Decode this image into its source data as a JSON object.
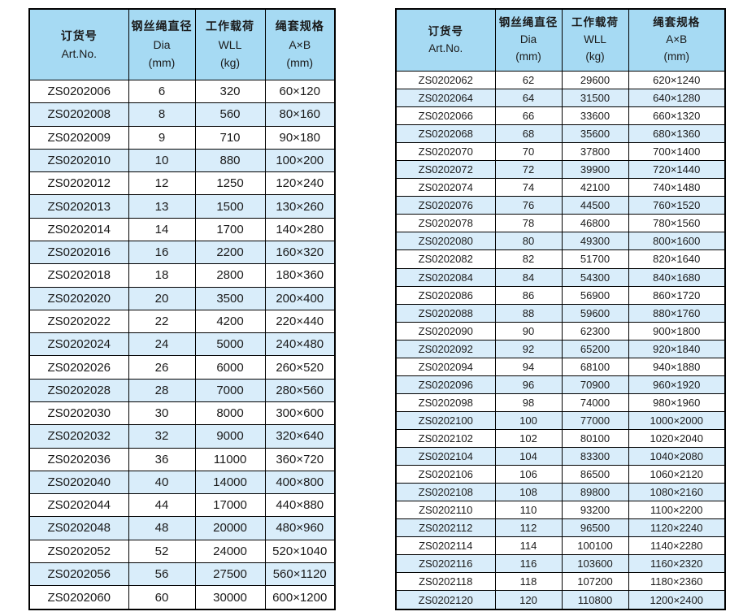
{
  "colors": {
    "header_bg": "#a6daf3",
    "row_alt_bg": "#d9edfa",
    "border": "#000000",
    "text": "#1a1a1a"
  },
  "header": {
    "art_no": {
      "zh": "订货号",
      "en": "Art.No."
    },
    "dia": {
      "zh": "钢丝绳直径",
      "en": "Dia",
      "unit": "(mm)"
    },
    "wll": {
      "zh": "工作载荷",
      "en": "WLL",
      "unit": "(kg)"
    },
    "spec": {
      "zh": "绳套规格",
      "en": "A×B",
      "unit": "(mm)"
    }
  },
  "tables": [
    {
      "name": "left-spec-table",
      "rows": [
        [
          "ZS0202006",
          "6",
          "320",
          "60×120"
        ],
        [
          "ZS0202008",
          "8",
          "560",
          "80×160"
        ],
        [
          "ZS0202009",
          "9",
          "710",
          "90×180"
        ],
        [
          "ZS0202010",
          "10",
          "880",
          "100×200"
        ],
        [
          "ZS0202012",
          "12",
          "1250",
          "120×240"
        ],
        [
          "ZS0202013",
          "13",
          "1500",
          "130×260"
        ],
        [
          "ZS0202014",
          "14",
          "1700",
          "140×280"
        ],
        [
          "ZS0202016",
          "16",
          "2200",
          "160×320"
        ],
        [
          "ZS0202018",
          "18",
          "2800",
          "180×360"
        ],
        [
          "ZS0202020",
          "20",
          "3500",
          "200×400"
        ],
        [
          "ZS0202022",
          "22",
          "4200",
          "220×440"
        ],
        [
          "ZS0202024",
          "24",
          "5000",
          "240×480"
        ],
        [
          "ZS0202026",
          "26",
          "6000",
          "260×520"
        ],
        [
          "ZS0202028",
          "28",
          "7000",
          "280×560"
        ],
        [
          "ZS0202030",
          "30",
          "8000",
          "300×600"
        ],
        [
          "ZS0202032",
          "32",
          "9000",
          "320×640"
        ],
        [
          "ZS0202036",
          "36",
          "11000",
          "360×720"
        ],
        [
          "ZS0202040",
          "40",
          "14000",
          "400×800"
        ],
        [
          "ZS0202044",
          "44",
          "17000",
          "440×880"
        ],
        [
          "ZS0202048",
          "48",
          "20000",
          "480×960"
        ],
        [
          "ZS0202052",
          "52",
          "24000",
          "520×1040"
        ],
        [
          "ZS0202056",
          "56",
          "27500",
          "560×1120"
        ],
        [
          "ZS0202060",
          "60",
          "30000",
          "600×1200"
        ]
      ]
    },
    {
      "name": "right-spec-table",
      "rows": [
        [
          "ZS0202062",
          "62",
          "29600",
          "620×1240"
        ],
        [
          "ZS0202064",
          "64",
          "31500",
          "640×1280"
        ],
        [
          "ZS0202066",
          "66",
          "33600",
          "660×1320"
        ],
        [
          "ZS0202068",
          "68",
          "35600",
          "680×1360"
        ],
        [
          "ZS0202070",
          "70",
          "37800",
          "700×1400"
        ],
        [
          "ZS0202072",
          "72",
          "39900",
          "720×1440"
        ],
        [
          "ZS0202074",
          "74",
          "42100",
          "740×1480"
        ],
        [
          "ZS0202076",
          "76",
          "44500",
          "760×1520"
        ],
        [
          "ZS0202078",
          "78",
          "46800",
          "780×1560"
        ],
        [
          "ZS0202080",
          "80",
          "49300",
          "800×1600"
        ],
        [
          "ZS0202082",
          "82",
          "51700",
          "820×1640"
        ],
        [
          "ZS0202084",
          "84",
          "54300",
          "840×1680"
        ],
        [
          "ZS0202086",
          "86",
          "56900",
          "860×1720"
        ],
        [
          "ZS0202088",
          "88",
          "59600",
          "880×1760"
        ],
        [
          "ZS0202090",
          "90",
          "62300",
          "900×1800"
        ],
        [
          "ZS0202092",
          "92",
          "65200",
          "920×1840"
        ],
        [
          "ZS0202094",
          "94",
          "68100",
          "940×1880"
        ],
        [
          "ZS0202096",
          "96",
          "70900",
          "960×1920"
        ],
        [
          "ZS0202098",
          "98",
          "74000",
          "980×1960"
        ],
        [
          "ZS0202100",
          "100",
          "77000",
          "1000×2000"
        ],
        [
          "ZS0202102",
          "102",
          "80100",
          "1020×2040"
        ],
        [
          "ZS0202104",
          "104",
          "83300",
          "1040×2080"
        ],
        [
          "ZS0202106",
          "106",
          "86500",
          "1060×2120"
        ],
        [
          "ZS0202108",
          "108",
          "89800",
          "1080×2160"
        ],
        [
          "ZS0202110",
          "110",
          "93200",
          "1100×2200"
        ],
        [
          "ZS0202112",
          "112",
          "96500",
          "1120×2240"
        ],
        [
          "ZS0202114",
          "114",
          "100100",
          "1140×2280"
        ],
        [
          "ZS0202116",
          "116",
          "103600",
          "1160×2320"
        ],
        [
          "ZS0202118",
          "118",
          "107200",
          "1180×2360"
        ],
        [
          "ZS0202120",
          "120",
          "110800",
          "1200×2400"
        ]
      ]
    }
  ]
}
